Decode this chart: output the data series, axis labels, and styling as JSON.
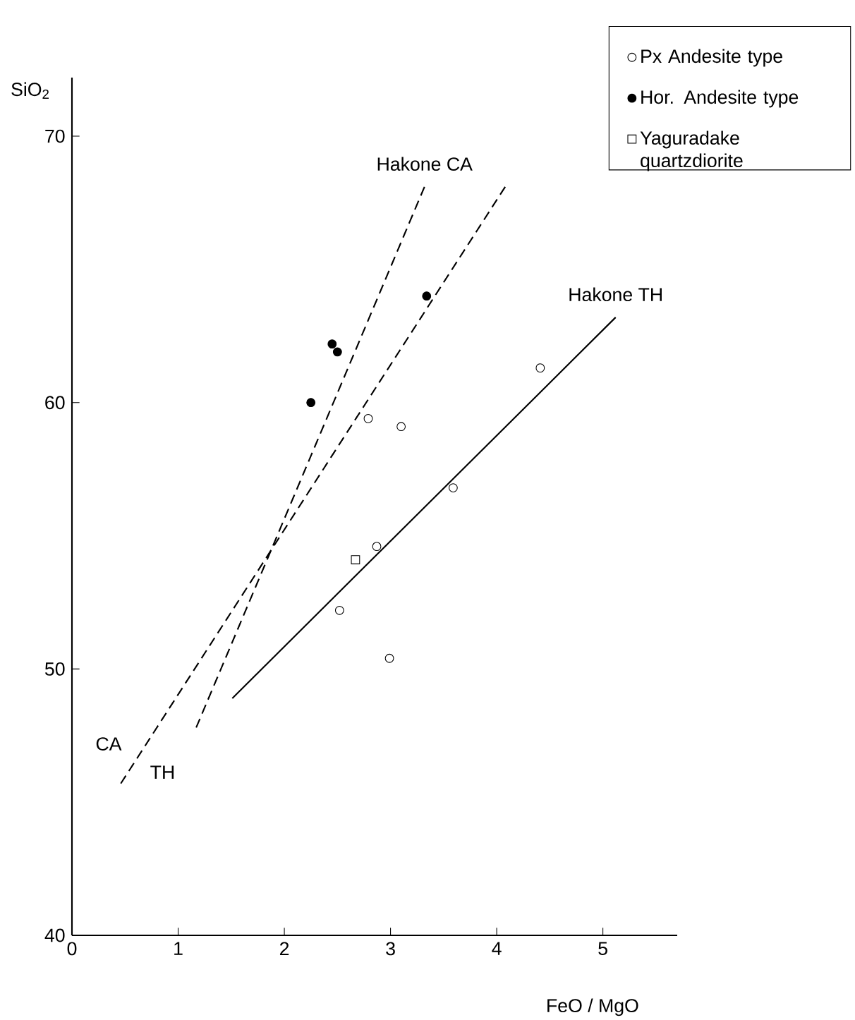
{
  "chart_data": {
    "type": "scatter",
    "xlabel": "FeO / MgO",
    "ylabel": "SiO$_{2}$",
    "xlim": [
      0,
      5.7
    ],
    "ylim": [
      40,
      72.2
    ],
    "xticks": [
      0,
      1,
      2,
      3,
      4,
      5
    ],
    "yticks": [
      40,
      50,
      60,
      70
    ],
    "grid": false,
    "legend": "top right",
    "annotations": [
      "CA",
      "TH"
    ],
    "series": [
      {
        "name": "Px  Andesite type",
        "marker": "circle",
        "color": "#000000",
        "x": [
          2.79,
          3.1,
          2.87,
          2.52,
          2.99,
          3.59,
          4.41
        ],
        "values": [
          59.4,
          59.1,
          54.6,
          52.2,
          50.4,
          56.8,
          61.3
        ]
      },
      {
        "name": "Hor. Andesite type",
        "marker": "dot",
        "color": "#000000",
        "x": [
          2.25,
          2.45,
          2.5,
          3.34
        ],
        "values": [
          60.0,
          62.2,
          61.9,
          64.0
        ]
      },
      {
        "name": "Yaguradake quartzdiorite",
        "marker": "square",
        "color": "#000000",
        "x": [
          2.67
        ],
        "values": [
          54.1
        ]
      },
      {
        "type": "line",
        "line_style": "dashed",
        "color": "#000000",
        "x": [
          0.46,
          4.08
        ],
        "values": [
          45.7,
          68.1
        ]
      },
      {
        "name": "Hakone CA",
        "type": "line",
        "line_style": "dashed",
        "color": "#000000",
        "x": [
          1.17,
          3.32
        ],
        "values": [
          47.8,
          68.1
        ]
      },
      {
        "name": "Hakone TH",
        "type": "line",
        "line_style": "solid",
        "color": "#000000",
        "x": [
          1.51,
          5.12
        ],
        "values": [
          48.9,
          63.2
        ]
      }
    ]
  }
}
